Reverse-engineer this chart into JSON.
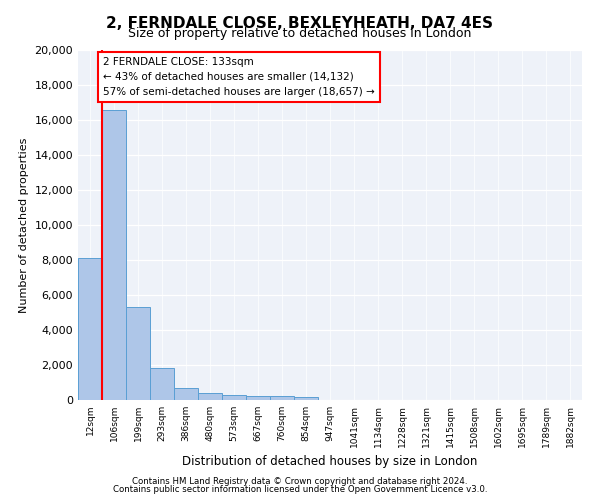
{
  "title1": "2, FERNDALE CLOSE, BEXLEYHEATH, DA7 4ES",
  "title2": "Size of property relative to detached houses in London",
  "xlabel": "Distribution of detached houses by size in London",
  "ylabel": "Number of detached properties",
  "bin_labels": [
    "12sqm",
    "106sqm",
    "199sqm",
    "293sqm",
    "386sqm",
    "480sqm",
    "573sqm",
    "667sqm",
    "760sqm",
    "854sqm",
    "947sqm",
    "1041sqm",
    "1134sqm",
    "1228sqm",
    "1321sqm",
    "1415sqm",
    "1508sqm",
    "1602sqm",
    "1695sqm",
    "1789sqm",
    "1882sqm"
  ],
  "bar_heights": [
    8100,
    16600,
    5300,
    1850,
    700,
    380,
    280,
    220,
    210,
    190,
    0,
    0,
    0,
    0,
    0,
    0,
    0,
    0,
    0,
    0,
    0
  ],
  "bar_color": "#aec6e8",
  "bar_edge_color": "#5a9fd4",
  "annotation_text": "2 FERNDALE CLOSE: 133sqm\n← 43% of detached houses are smaller (14,132)\n57% of semi-detached houses are larger (18,657) →",
  "ylim": [
    0,
    20000
  ],
  "yticks": [
    0,
    2000,
    4000,
    6000,
    8000,
    10000,
    12000,
    14000,
    16000,
    18000,
    20000
  ],
  "footer1": "Contains HM Land Registry data © Crown copyright and database right 2024.",
  "footer2": "Contains public sector information licensed under the Open Government Licence v3.0.",
  "bg_color": "#eef2f9"
}
